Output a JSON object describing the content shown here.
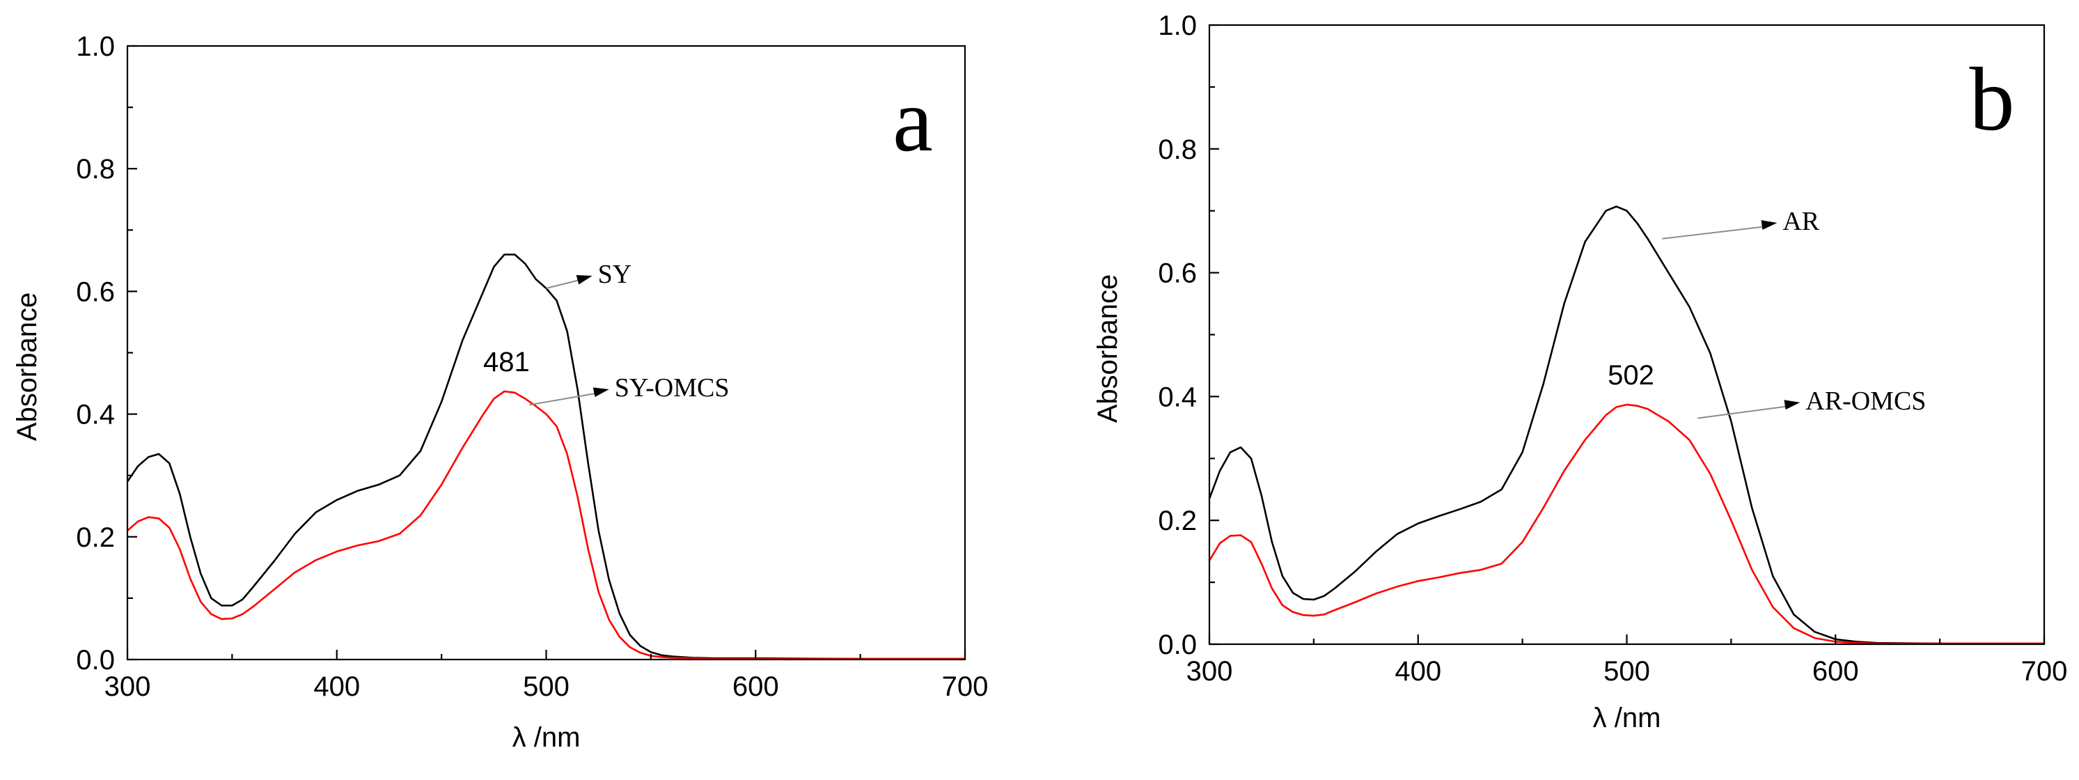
{
  "chart_data": [
    {
      "type": "line",
      "panel_label": "a",
      "xlabel": "λ /nm",
      "ylabel": "Absorbance",
      "xlim": [
        300,
        700
      ],
      "ylim": [
        0.0,
        1.0
      ],
      "x_ticks": [
        300,
        400,
        500,
        600,
        700
      ],
      "y_ticks": [
        "0.0",
        "0.2",
        "0.4",
        "0.6",
        "0.8",
        "1.0"
      ],
      "peak_annotation": "481",
      "peak_position": {
        "x": 481,
        "y": 0.445
      },
      "series": [
        {
          "name": "SY",
          "color": "#000000",
          "label_anchor": {
            "x": 500,
            "y": 0.605
          },
          "label_text_at": {
            "x": 524,
            "y": 0.63
          },
          "x": [
            300,
            305,
            310,
            315,
            320,
            325,
            330,
            335,
            340,
            345,
            350,
            355,
            360,
            370,
            380,
            390,
            400,
            410,
            420,
            430,
            440,
            450,
            460,
            470,
            475,
            480,
            485,
            490,
            495,
            500,
            505,
            510,
            515,
            520,
            525,
            530,
            535,
            540,
            545,
            550,
            555,
            560,
            570,
            580,
            600,
            650,
            700
          ],
          "y": [
            0.29,
            0.315,
            0.33,
            0.335,
            0.32,
            0.27,
            0.2,
            0.14,
            0.1,
            0.088,
            0.088,
            0.098,
            0.118,
            0.16,
            0.205,
            0.24,
            0.26,
            0.275,
            0.285,
            0.3,
            0.34,
            0.42,
            0.52,
            0.6,
            0.64,
            0.66,
            0.66,
            0.645,
            0.62,
            0.605,
            0.585,
            0.535,
            0.44,
            0.32,
            0.21,
            0.13,
            0.075,
            0.04,
            0.022,
            0.012,
            0.007,
            0.005,
            0.003,
            0.002,
            0.002,
            0.001,
            0.001
          ]
        },
        {
          "name": "SY-OMCS",
          "color": "#ff0000",
          "label_anchor": {
            "x": 492,
            "y": 0.415
          },
          "label_text_at": {
            "x": 532,
            "y": 0.445
          },
          "x": [
            300,
            305,
            310,
            315,
            320,
            325,
            330,
            335,
            340,
            345,
            350,
            355,
            360,
            370,
            380,
            390,
            400,
            410,
            420,
            430,
            440,
            450,
            460,
            470,
            475,
            480,
            485,
            490,
            495,
            500,
            505,
            510,
            515,
            520,
            525,
            530,
            535,
            540,
            545,
            550,
            555,
            560,
            570,
            580,
            600,
            650,
            700
          ],
          "y": [
            0.21,
            0.225,
            0.232,
            0.23,
            0.215,
            0.18,
            0.132,
            0.094,
            0.074,
            0.066,
            0.067,
            0.074,
            0.086,
            0.114,
            0.142,
            0.162,
            0.176,
            0.186,
            0.193,
            0.205,
            0.235,
            0.285,
            0.345,
            0.4,
            0.425,
            0.437,
            0.435,
            0.425,
            0.413,
            0.4,
            0.38,
            0.335,
            0.265,
            0.18,
            0.11,
            0.065,
            0.037,
            0.02,
            0.011,
            0.006,
            0.004,
            0.003,
            0.002,
            0.001,
            0.001,
            0.001,
            0.001
          ]
        }
      ]
    },
    {
      "type": "line",
      "panel_label": "b",
      "xlabel": "λ /nm",
      "ylabel": "Absorbance",
      "xlim": [
        300,
        700
      ],
      "ylim": [
        0.0,
        1.0
      ],
      "x_ticks": [
        300,
        400,
        500,
        600,
        700
      ],
      "y_ticks": [
        "0.0",
        "0.2",
        "0.4",
        "0.6",
        "0.8",
        "1.0"
      ],
      "peak_annotation": "502",
      "peak_position": {
        "x": 502,
        "y": 0.395
      },
      "series": [
        {
          "name": "AR",
          "color": "#000000",
          "label_anchor": {
            "x": 517,
            "y": 0.655
          },
          "label_text_at": {
            "x": 574,
            "y": 0.685
          },
          "x": [
            300,
            305,
            310,
            315,
            320,
            325,
            330,
            335,
            340,
            345,
            350,
            355,
            360,
            370,
            380,
            390,
            400,
            410,
            420,
            430,
            440,
            450,
            460,
            470,
            480,
            490,
            495,
            500,
            505,
            510,
            520,
            530,
            540,
            550,
            560,
            570,
            580,
            590,
            600,
            610,
            620,
            650,
            700
          ],
          "y": [
            0.235,
            0.28,
            0.31,
            0.318,
            0.3,
            0.24,
            0.165,
            0.11,
            0.083,
            0.073,
            0.072,
            0.078,
            0.09,
            0.118,
            0.15,
            0.178,
            0.195,
            0.207,
            0.218,
            0.23,
            0.25,
            0.31,
            0.42,
            0.55,
            0.65,
            0.7,
            0.707,
            0.7,
            0.68,
            0.655,
            0.6,
            0.545,
            0.47,
            0.36,
            0.22,
            0.11,
            0.048,
            0.02,
            0.008,
            0.004,
            0.002,
            0.001,
            0.001
          ]
        },
        {
          "name": "AR-OMCS",
          "color": "#ff0000",
          "label_anchor": {
            "x": 534,
            "y": 0.365
          },
          "label_text_at": {
            "x": 585,
            "y": 0.395
          },
          "x": [
            300,
            305,
            310,
            315,
            320,
            325,
            330,
            335,
            340,
            345,
            350,
            355,
            360,
            370,
            380,
            390,
            400,
            410,
            420,
            430,
            440,
            450,
            460,
            470,
            480,
            490,
            495,
            500,
            505,
            510,
            520,
            530,
            540,
            550,
            560,
            570,
            580,
            590,
            600,
            610,
            620,
            650,
            700
          ],
          "y": [
            0.135,
            0.163,
            0.175,
            0.176,
            0.165,
            0.13,
            0.09,
            0.063,
            0.052,
            0.047,
            0.046,
            0.048,
            0.055,
            0.068,
            0.082,
            0.093,
            0.102,
            0.108,
            0.115,
            0.12,
            0.13,
            0.165,
            0.22,
            0.28,
            0.33,
            0.37,
            0.383,
            0.387,
            0.385,
            0.38,
            0.36,
            0.33,
            0.275,
            0.2,
            0.12,
            0.06,
            0.026,
            0.01,
            0.004,
            0.002,
            0.001,
            0.001,
            0.001
          ]
        }
      ]
    }
  ]
}
